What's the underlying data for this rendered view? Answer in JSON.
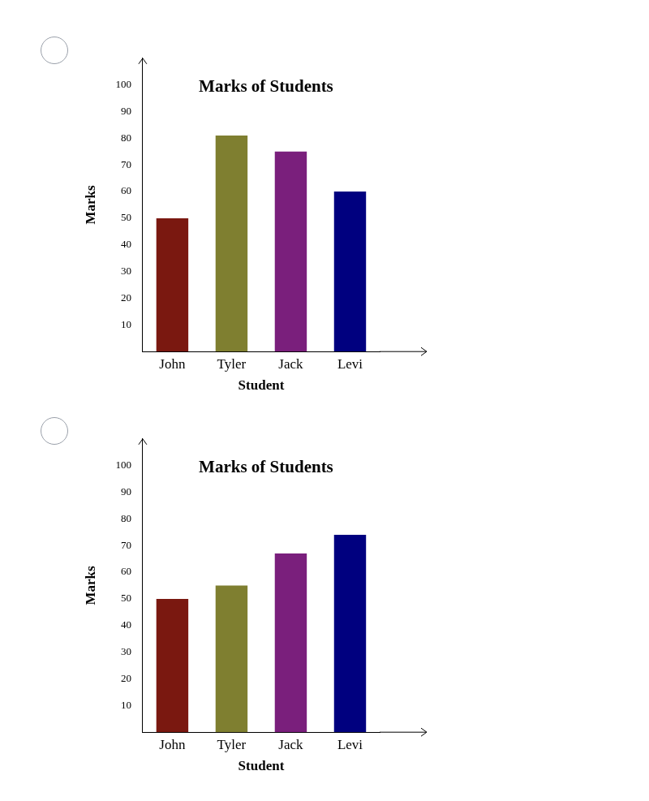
{
  "chart_data": [
    {
      "type": "bar",
      "title": "Marks of Students",
      "x_label": "Student",
      "y_label": "Marks",
      "categories": [
        "John",
        "Tyler",
        "Jack",
        "Levi"
      ],
      "values": [
        50,
        81,
        75,
        60
      ],
      "colors": [
        "#7a1810",
        "#7f7f30",
        "#7a1f7c",
        "#00007f"
      ],
      "ylim": [
        0,
        110
      ],
      "yticks": [
        10,
        20,
        30,
        40,
        50,
        60,
        70,
        80,
        90,
        100
      ],
      "grid": false
    },
    {
      "type": "bar",
      "title": "Marks of Students",
      "x_label": "Student",
      "y_label": "Marks",
      "categories": [
        "John",
        "Tyler",
        "Jack",
        "Levi"
      ],
      "values": [
        50,
        55,
        67,
        74
      ],
      "colors": [
        "#7a1810",
        "#7f7f30",
        "#7a1f7c",
        "#00007f"
      ],
      "ylim": [
        0,
        110
      ],
      "yticks": [
        10,
        20,
        30,
        40,
        50,
        60,
        70,
        80,
        90,
        100
      ],
      "grid": false
    }
  ]
}
